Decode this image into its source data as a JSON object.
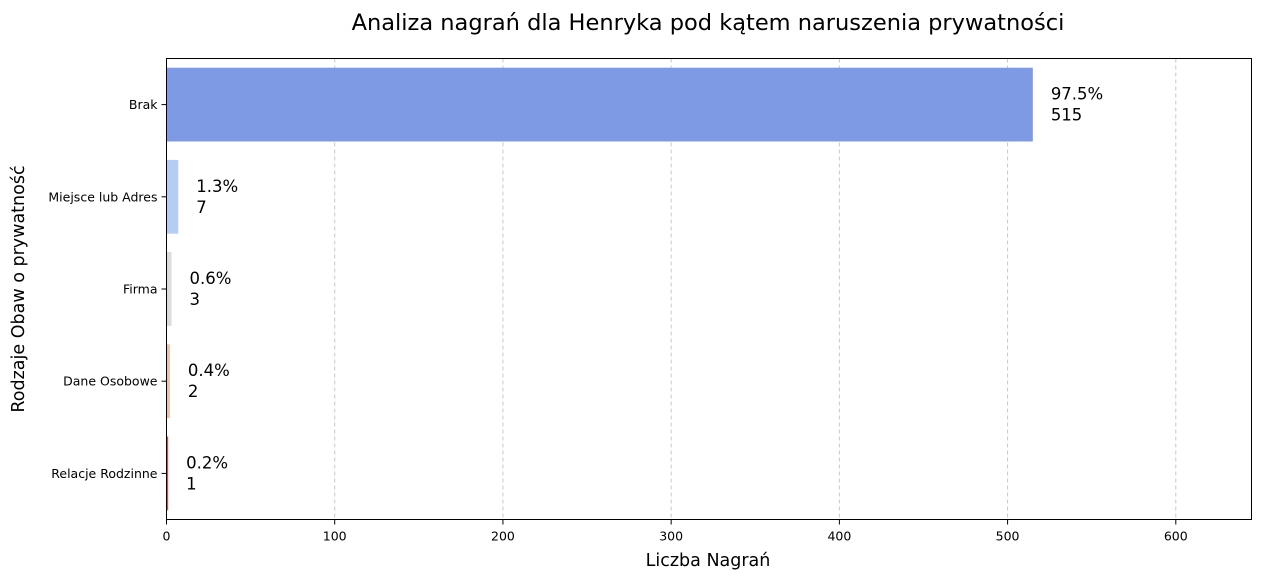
{
  "chart_data": {
    "type": "bar",
    "orientation": "horizontal",
    "title": "Analiza nagrań dla Henryka pod kątem naruszenia prywatności",
    "xlabel": "Liczba Nagrań",
    "ylabel": "Rodzaje Obaw o prywatność",
    "categories": [
      "Brak",
      "Miejsce lub Adres",
      "Firma",
      "Dane Osobowe",
      "Relacje Rodzinne"
    ],
    "values": [
      515,
      7,
      3,
      2,
      1
    ],
    "percent_labels": [
      "97.5%",
      "1.3%",
      "0.6%",
      "0.4%",
      "0.2%"
    ],
    "colors": [
      "#7f9ae4",
      "#b5cdf5",
      "#dcdcdc",
      "#f0c0a4",
      "#c25842"
    ],
    "xlim": [
      0,
      645
    ],
    "xticks": [
      0,
      100,
      200,
      300,
      400,
      500,
      600
    ],
    "grid": "x-dashed",
    "legend": "none"
  }
}
